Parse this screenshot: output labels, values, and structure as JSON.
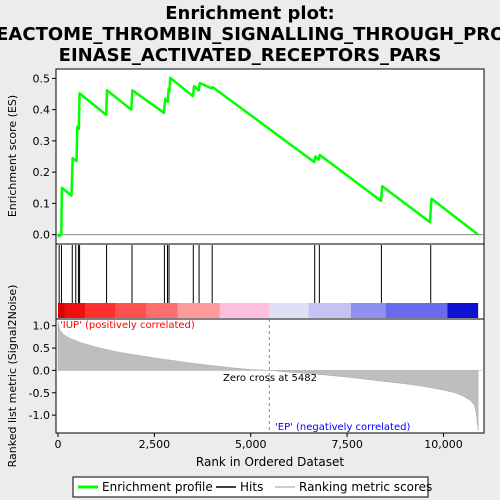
{
  "chart_data": {
    "type": "line",
    "title_lines": [
      "Enrichment plot:",
      "REACTOME_THROMBIN_SIGNALLING_THROUGH_PROT",
      "EINASE_ACTIVATED_RECEPTORS_PARS"
    ],
    "xlabel": "Rank in Ordered Dataset",
    "xlim": [
      0,
      11000
    ],
    "x_ticks": [
      0,
      2500,
      5000,
      7500,
      10000
    ],
    "x_tick_labels": [
      "0",
      "2,500",
      "5,000",
      "7,500",
      "10,000"
    ],
    "top_panel": {
      "ylabel": "Enrichment score (ES)",
      "ylim": [
        -0.03,
        0.53
      ],
      "y_ticks": [
        0.0,
        0.1,
        0.2,
        0.3,
        0.4,
        0.5
      ],
      "y_tick_labels": [
        "0.0",
        "0.1",
        "0.2",
        "0.3",
        "0.4",
        "0.5"
      ],
      "series": [
        {
          "name": "Enrichment profile",
          "color": "#00ff00",
          "x": [
            0,
            10,
            20,
            85,
            100,
            350,
            380,
            480,
            500,
            540,
            560,
            1250,
            1270,
            1900,
            1930,
            2750,
            2780,
            2850,
            2870,
            2890,
            2910,
            3500,
            3530,
            3650,
            3680,
            3990,
            4010,
            6650,
            6680,
            6760,
            6790,
            8380,
            8410,
            9650,
            9690,
            10900
          ],
          "y": [
            0.0,
            0.0,
            -0.005,
            0.0,
            0.15,
            0.125,
            0.245,
            0.235,
            0.345,
            0.338,
            0.452,
            0.383,
            0.462,
            0.4,
            0.462,
            0.39,
            0.435,
            0.425,
            0.465,
            0.458,
            0.502,
            0.443,
            0.475,
            0.462,
            0.485,
            0.468,
            0.472,
            0.232,
            0.25,
            0.24,
            0.255,
            0.108,
            0.155,
            0.04,
            0.115,
            0.0
          ]
        }
      ]
    },
    "hits": [
      30,
      90,
      370,
      460,
      530,
      560,
      1260,
      1920,
      2760,
      2840,
      2880,
      3510,
      3660,
      4000,
      6660,
      6780,
      8390,
      9670
    ],
    "bottom_panel": {
      "ylabel": "Ranked list metric (Signal2Noise)",
      "ylim": [
        -1.4,
        1.15
      ],
      "y_ticks": [
        1.0,
        0.5,
        0.0,
        -0.5,
        -1.0
      ],
      "y_tick_labels": [
        "1.0",
        "0.5",
        "0.0",
        "-0.5",
        "-1.0"
      ],
      "metric_x": [
        0,
        50,
        150,
        300,
        600,
        1000,
        1500,
        2000,
        2500,
        3000,
        3500,
        4000,
        4500,
        5000,
        5482,
        6000,
        6500,
        7000,
        7500,
        8000,
        8500,
        9000,
        9500,
        10000,
        10300,
        10500,
        10700,
        10800,
        10850,
        10900
      ],
      "metric_y": [
        1.1,
        0.9,
        0.8,
        0.72,
        0.62,
        0.52,
        0.42,
        0.35,
        0.28,
        0.22,
        0.16,
        0.11,
        0.06,
        0.02,
        0.0,
        -0.04,
        -0.07,
        -0.11,
        -0.15,
        -0.2,
        -0.25,
        -0.3,
        -0.36,
        -0.44,
        -0.5,
        -0.57,
        -0.67,
        -0.78,
        -0.95,
        -1.35
      ],
      "fill_color": "#bebebe",
      "zero_cross_label": "Zero cross at 5482",
      "zero_cross_x": 5482,
      "pos_label": "'IUP' (positively correlated)",
      "neg_label": "'EP' (negatively correlated)",
      "pos_label_color": "#ff0000",
      "neg_label_color": "#0000ff"
    },
    "colorbar": [
      {
        "from": 0,
        "to": 180,
        "color": "#d80000"
      },
      {
        "from": 180,
        "to": 700,
        "color": "#f00f0f"
      },
      {
        "from": 700,
        "to": 1500,
        "color": "#ff3030"
      },
      {
        "from": 1500,
        "to": 2300,
        "color": "#ff5050"
      },
      {
        "from": 2300,
        "to": 3100,
        "color": "#ff6e6e"
      },
      {
        "from": 3100,
        "to": 4200,
        "color": "#ff9a9a"
      },
      {
        "from": 4200,
        "to": 5482,
        "color": "#ffc0e0"
      },
      {
        "from": 5482,
        "to": 6500,
        "color": "#e0e0f4"
      },
      {
        "from": 6500,
        "to": 7600,
        "color": "#c4c4f4"
      },
      {
        "from": 7600,
        "to": 8500,
        "color": "#9090f0"
      },
      {
        "from": 8500,
        "to": 10100,
        "color": "#6a6aee"
      },
      {
        "from": 10100,
        "to": 10900,
        "color": "#1010d0"
      }
    ],
    "legend": {
      "position": "bottom",
      "items": [
        {
          "label": "Enrichment profile",
          "color": "#00ff00"
        },
        {
          "label": "Hits",
          "color": "#000000"
        },
        {
          "label": "Ranking metric scores",
          "color": "#bebebe"
        }
      ]
    }
  }
}
